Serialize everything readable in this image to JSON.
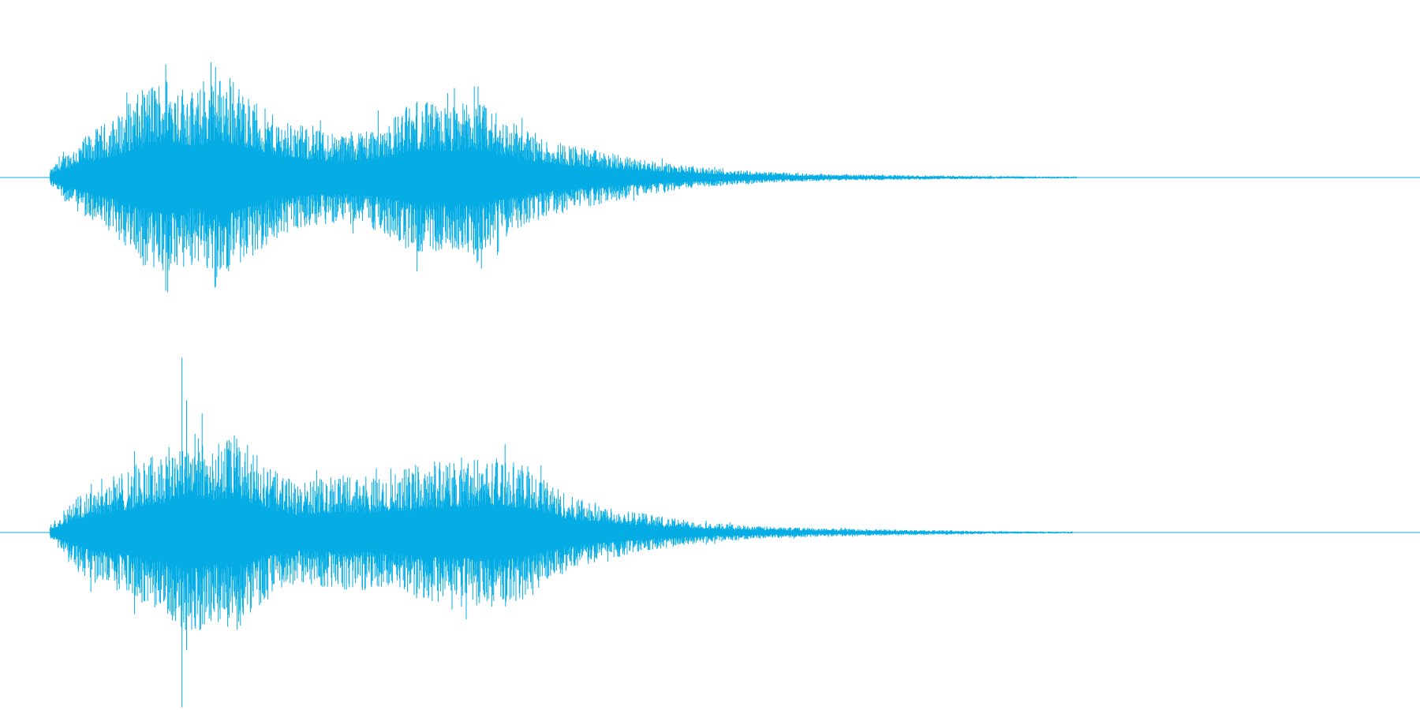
{
  "waveform": {
    "color": "#06ade4"
  }
}
